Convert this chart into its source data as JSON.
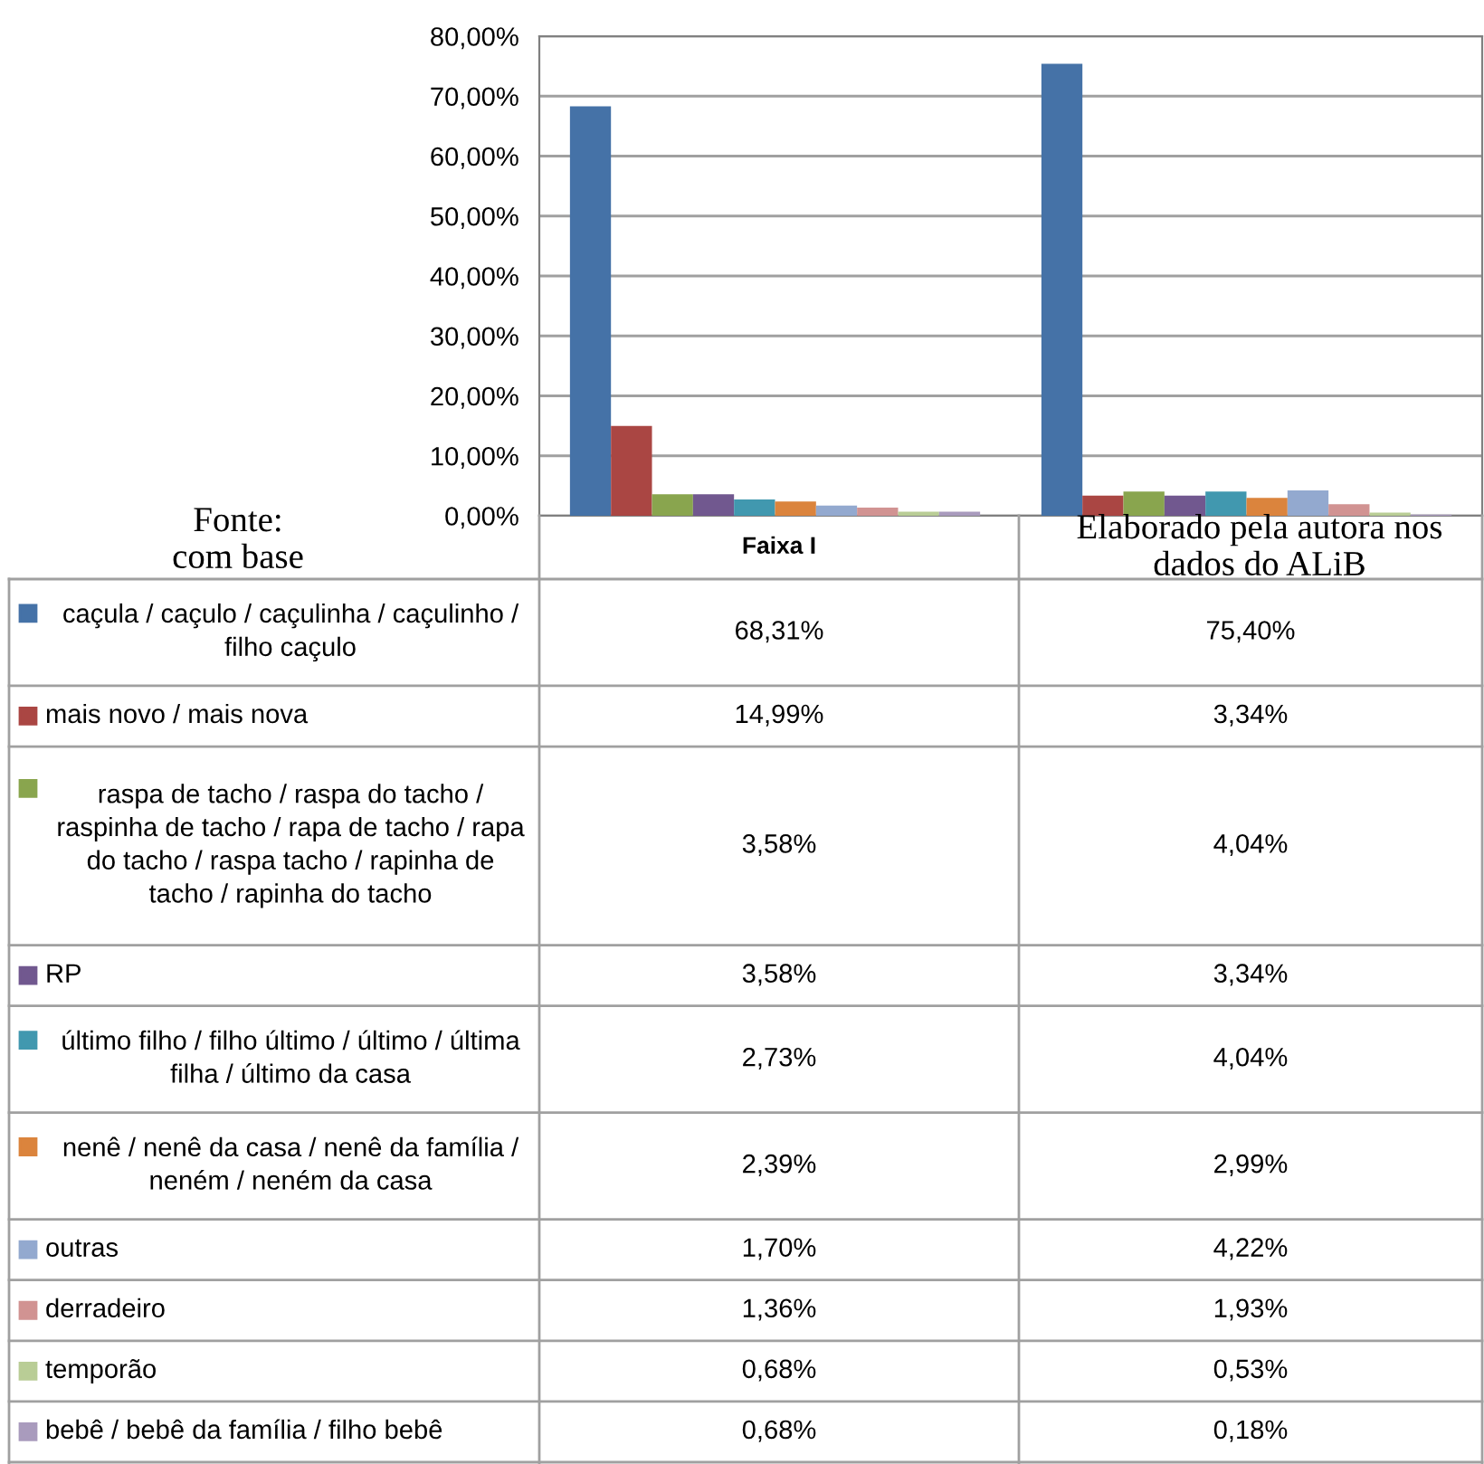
{
  "chart_data": {
    "type": "bar",
    "categories": [
      "Faixa I",
      null
    ],
    "ylim": [
      0,
      80
    ],
    "yticks": [
      {
        "value": 0,
        "label": "0,00%"
      },
      {
        "value": 10,
        "label": "10,00%"
      },
      {
        "value": 20,
        "label": "20,00%"
      },
      {
        "value": 30,
        "label": "30,00%"
      },
      {
        "value": 40,
        "label": "40,00%"
      },
      {
        "value": 50,
        "label": "50,00%"
      },
      {
        "value": 60,
        "label": "60,00%"
      },
      {
        "value": 70,
        "label": "70,00%"
      },
      {
        "value": 80,
        "label": "80,00%"
      }
    ],
    "grid": "y",
    "legend": "bottom",
    "series": [
      {
        "name": "caçula / caçulo / caçulinha / caçulinho / filho caçulo",
        "color": "#4572a7",
        "values": [
          68.31,
          75.4
        ],
        "value_labels": [
          "68,31%",
          "75,40%"
        ]
      },
      {
        "name": "mais novo / mais nova",
        "color": "#aa4643",
        "values": [
          14.99,
          3.34
        ],
        "value_labels": [
          "14,99%",
          "3,34%"
        ]
      },
      {
        "name": "raspa de tacho / raspa do tacho / raspinha de tacho / rapa de tacho / rapa do tacho / raspa tacho / rapinha de tacho / rapinha do tacho",
        "color": "#89a54e",
        "values": [
          3.58,
          4.04
        ],
        "value_labels": [
          "3,58%",
          "4,04%"
        ]
      },
      {
        "name": "RP",
        "color": "#71588f",
        "values": [
          3.58,
          3.34
        ],
        "value_labels": [
          "3,58%",
          "3,34%"
        ]
      },
      {
        "name": "último filho / filho último / último / última filha / último da casa",
        "color": "#4198af",
        "values": [
          2.73,
          4.04
        ],
        "value_labels": [
          "2,73%",
          "4,04%"
        ]
      },
      {
        "name": "nenê / nenê da casa / nenê da família / neném / neném da casa",
        "color": "#db843d",
        "values": [
          2.39,
          2.99
        ],
        "value_labels": [
          "2,39%",
          "2,99%"
        ]
      },
      {
        "name": "outras",
        "color": "#93a9cf",
        "values": [
          1.7,
          4.22
        ],
        "value_labels": [
          "1,70%",
          "4,22%"
        ]
      },
      {
        "name": "derradeiro",
        "color": "#d19392",
        "values": [
          1.36,
          1.93
        ],
        "value_labels": [
          "1,36%",
          "1,93%"
        ]
      },
      {
        "name": "temporão",
        "color": "#b9cd96",
        "values": [
          0.68,
          0.53
        ],
        "value_labels": [
          "0,68%",
          "0,53%"
        ]
      },
      {
        "name": "bebê / bebê da família / filho bebê",
        "color": "#a99bbd",
        "values": [
          0.68,
          0.18
        ],
        "value_labels": [
          "0,68%",
          "0,18%"
        ]
      }
    ],
    "annotations": [
      "Fonte: com base",
      "Elaborado pela autora nos dados do ALiB"
    ]
  }
}
